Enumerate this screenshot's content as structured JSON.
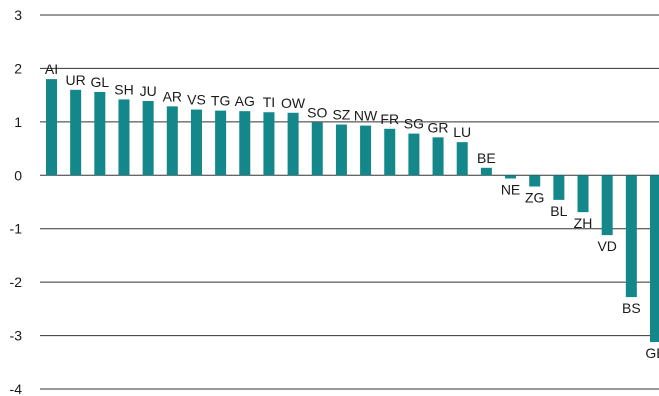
{
  "chart_data": {
    "type": "bar",
    "categories": [
      "AI",
      "UR",
      "GL",
      "SH",
      "JU",
      "AR",
      "VS",
      "TG",
      "AG",
      "TI",
      "OW",
      "SO",
      "SZ",
      "NW",
      "FR",
      "SG",
      "GR",
      "LU",
      "BE",
      "NE",
      "ZG",
      "BL",
      "ZH",
      "VD",
      "BS",
      "GE"
    ],
    "values": [
      1.8,
      1.6,
      1.56,
      1.42,
      1.39,
      1.29,
      1.23,
      1.21,
      1.2,
      1.18,
      1.17,
      0.99,
      0.95,
      0.93,
      0.87,
      0.78,
      0.71,
      0.62,
      0.14,
      -0.06,
      -0.21,
      -0.46,
      -0.69,
      -1.12,
      -2.28,
      -3.12
    ],
    "yticks": [
      3,
      2,
      1,
      0,
      -1,
      -2,
      -3,
      -4
    ],
    "ylim": [
      -4,
      3
    ],
    "grid": true,
    "bar_color": "#13878a",
    "title": "",
    "xlabel": "",
    "ylabel": ""
  }
}
